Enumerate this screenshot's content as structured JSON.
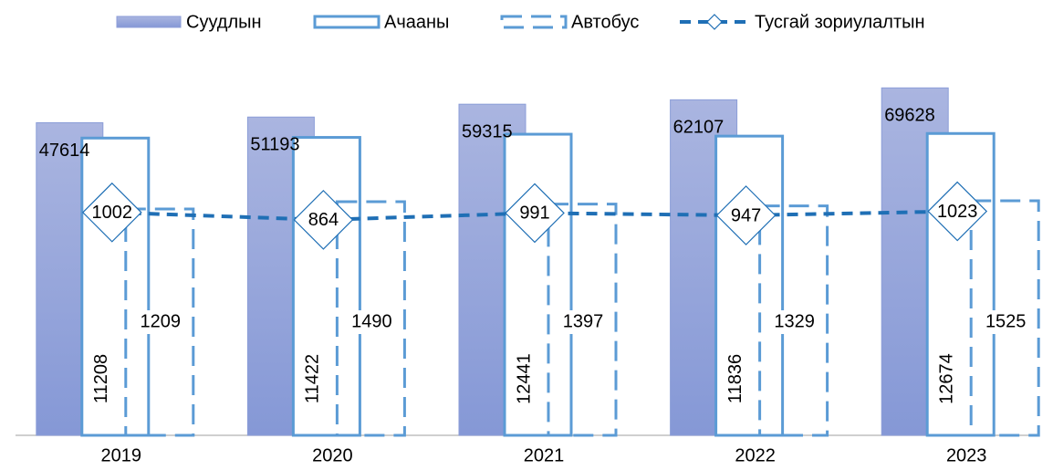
{
  "chart_data": {
    "type": "bar",
    "categories": [
      "2019",
      "2020",
      "2021",
      "2022",
      "2023"
    ],
    "series": [
      {
        "name": "Суудлын",
        "style": "filled",
        "color": "#8c9ed8",
        "values": [
          47614,
          51193,
          59315,
          62107,
          69628
        ],
        "ylim": [
          -150000,
          75000
        ]
      },
      {
        "name": "Ачааны",
        "style": "outline",
        "color": "#5b9bd5",
        "values": [
          11208,
          11422,
          12441,
          11836,
          12674
        ],
        "ylim": [
          -84000,
          30000
        ]
      },
      {
        "name": "Автобус",
        "style": "dashed",
        "color": "#5b9bd5",
        "values": [
          1209,
          1490,
          1397,
          1329,
          1525
        ],
        "ylim": [
          -7470,
          6180
        ]
      },
      {
        "name": "Тусгай зориулалтын",
        "style": "line",
        "color": "#1f6fb5",
        "values": [
          1002,
          864,
          991,
          947,
          1023
        ],
        "ylim": [
          -3150,
          3480
        ]
      }
    ]
  }
}
